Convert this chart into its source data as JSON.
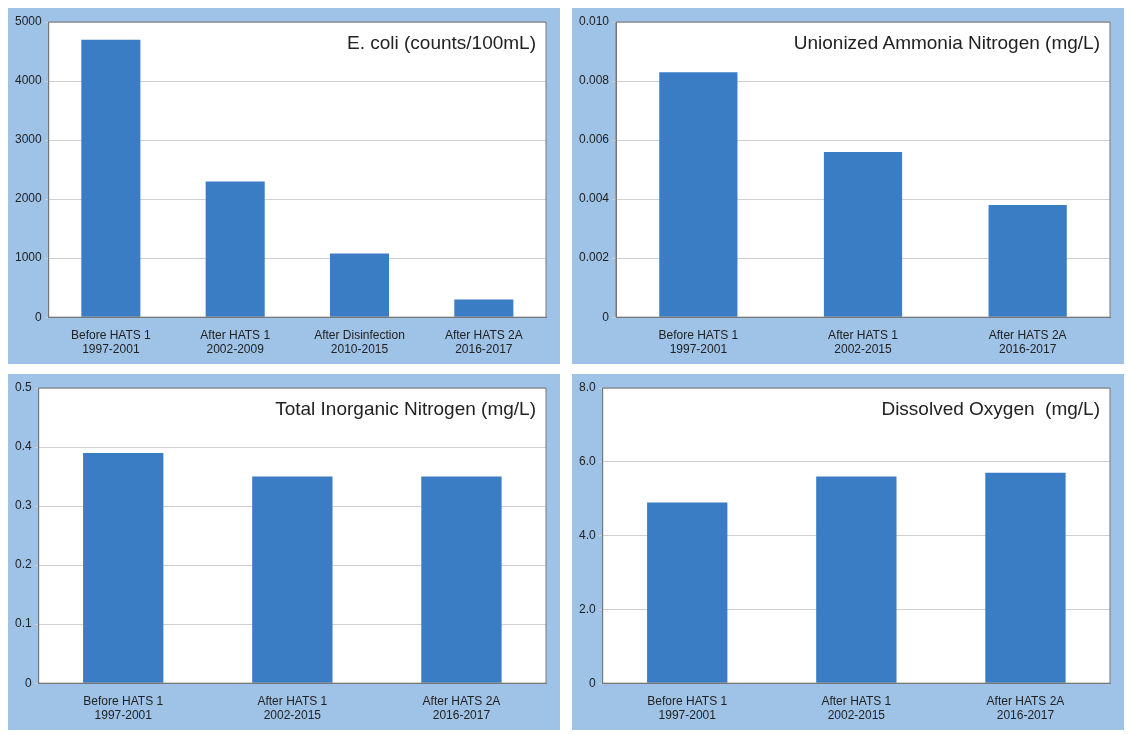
{
  "chart_data": [
    {
      "type": "bar",
      "title": "E. coli (counts/100mL)",
      "categories": [
        "Before HATS 1\n1997-2001",
        "After HATS 1\n2002-2009",
        "After Disinfection\n2010-2015",
        "After HATS 2A\n2016-2017"
      ],
      "values": [
        4700,
        2300,
        1080,
        300
      ],
      "color": "#3a7dc4",
      "ylim": [
        0,
        5000
      ],
      "yticks": [
        0,
        1000,
        2000,
        3000,
        4000,
        5000
      ],
      "grid": "y"
    },
    {
      "type": "bar",
      "title": "Unionized Ammonia Nitrogen (mg/L)",
      "categories": [
        "Before HATS 1\n1997-2001",
        "After HATS 1\n2002-2015",
        "After HATS 2A\n2016-2017"
      ],
      "values": [
        0.0083,
        0.0056,
        0.0038
      ],
      "color": "#3a7dc4",
      "ylim": [
        0,
        0.01
      ],
      "yticks": [
        0,
        0.002,
        0.004,
        0.006,
        0.008,
        {
          "value": 0.01,
          "label": "0.010"
        }
      ],
      "grid": "y"
    },
    {
      "type": "bar",
      "title": "Total Inorganic Nitrogen (mg/L)",
      "categories": [
        "Before HATS 1\n1997-2001",
        "After HATS 1\n2002-2015",
        "After HATS 2A\n2016-2017"
      ],
      "values": [
        0.39,
        0.35,
        0.35
      ],
      "color": "#3a7dc4",
      "ylim": [
        0,
        0.5
      ],
      "yticks": [
        0,
        0.1,
        0.2,
        0.3,
        0.4,
        0.5
      ],
      "grid": "y"
    },
    {
      "type": "bar",
      "title": "Dissolved Oxygen  (mg/L)",
      "categories": [
        "Before HATS 1\n1997-2001",
        "After HATS 1\n2002-2015",
        "After HATS 2A\n2016-2017"
      ],
      "values": [
        4.9,
        5.6,
        5.7
      ],
      "color": "#3a7dc4",
      "ylim": [
        0,
        8
      ],
      "yticks": [
        0,
        {
          "value": 2,
          "label": "2.0"
        },
        {
          "value": 4,
          "label": "4.0"
        },
        {
          "value": 6,
          "label": "6.0"
        },
        {
          "value": 8,
          "label": "8.0"
        }
      ],
      "grid": "y"
    }
  ]
}
